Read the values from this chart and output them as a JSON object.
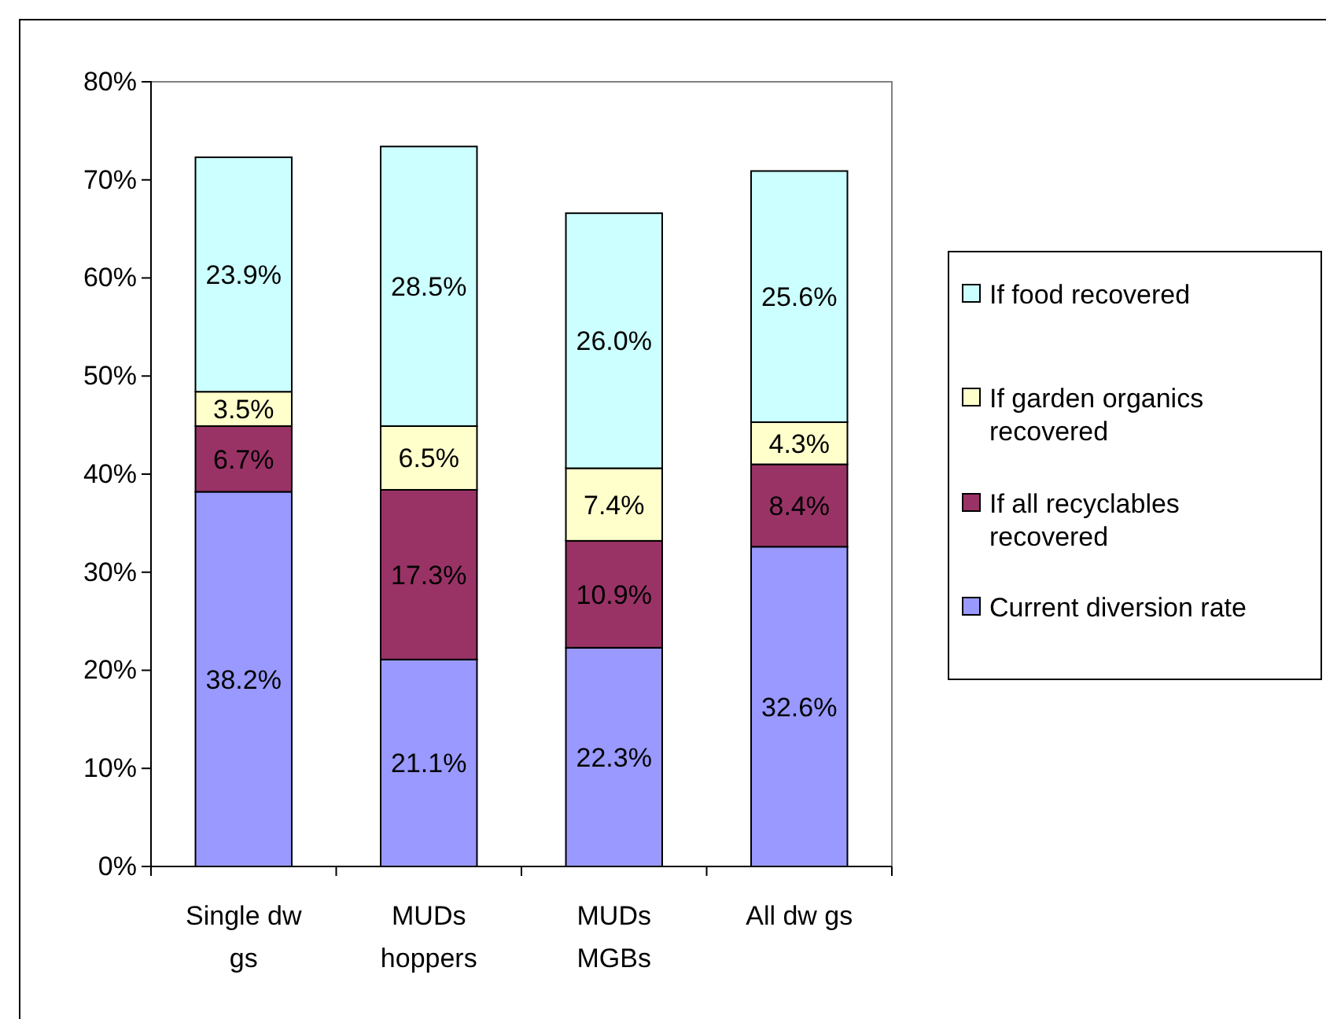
{
  "chart_data": {
    "type": "bar",
    "stacked": true,
    "categories": [
      "Single dw gs",
      "MUDs hoppers",
      "MUDs MGBs",
      "All dw gs"
    ],
    "series": [
      {
        "name": "Current diversion rate",
        "color": "#9999ff",
        "values": [
          38.2,
          21.1,
          22.3,
          32.6
        ]
      },
      {
        "name": "If all recyclables recovered",
        "color": "#993366",
        "values": [
          6.7,
          17.3,
          10.9,
          8.4
        ]
      },
      {
        "name": "If garden organics recovered",
        "color": "#ffffcc",
        "values": [
          3.5,
          6.5,
          7.4,
          4.3
        ]
      },
      {
        "name": "If food recovered",
        "color": "#ccffff",
        "values": [
          23.9,
          28.5,
          26.0,
          25.6
        ]
      }
    ],
    "value_labels": [
      [
        "38.2%",
        "21.1%",
        "22.3%",
        "32.6%"
      ],
      [
        "6.7%",
        "17.3%",
        "10.9%",
        "8.4%"
      ],
      [
        "3.5%",
        "6.5%",
        "7.4%",
        "4.3%"
      ],
      [
        "23.9%",
        "28.5%",
        "26.0%",
        "25.6%"
      ]
    ],
    "ylim": [
      0,
      80
    ],
    "yticks": [
      {
        "value": 0,
        "label": "0%"
      },
      {
        "value": 10,
        "label": "10%"
      },
      {
        "value": 20,
        "label": "20%"
      },
      {
        "value": 30,
        "label": "30%"
      },
      {
        "value": 40,
        "label": "40%"
      },
      {
        "value": 50,
        "label": "50%"
      },
      {
        "value": 60,
        "label": "60%"
      },
      {
        "value": 70,
        "label": "70%"
      },
      {
        "value": 80,
        "label": "80%"
      }
    ],
    "grid": false,
    "legend": "right"
  }
}
